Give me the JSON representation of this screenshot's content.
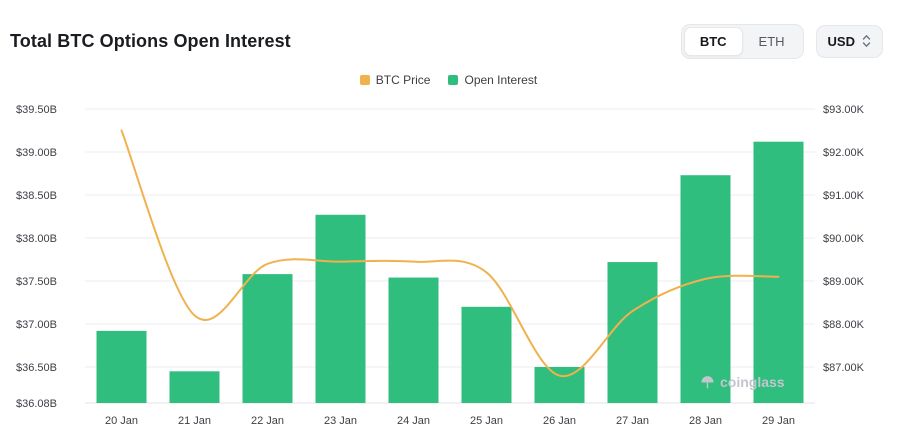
{
  "header": {
    "title": "Total BTC Options Open Interest",
    "toggle": {
      "btc": "BTC",
      "eth": "ETH"
    },
    "currency": "USD"
  },
  "legend": {
    "btc_price": "BTC Price",
    "open_interest": "Open Interest"
  },
  "watermark": {
    "text": "coinglass"
  },
  "colors": {
    "bar": "#2FBE7D",
    "line": "#F0B14F",
    "grid": "#ededee",
    "axis_line": "#e2e3e6",
    "axis_text": "#3c3f45",
    "watermark": "#c2c6cc"
  },
  "chart_data": {
    "type": "bar",
    "title": "Total BTC Options Open Interest",
    "legend_position": "top-center",
    "grid": "horizontal",
    "categories": [
      "20 Jan",
      "21 Jan",
      "22 Jan",
      "23 Jan",
      "24 Jan",
      "25 Jan",
      "26 Jan",
      "27 Jan",
      "28 Jan",
      "29 Jan"
    ],
    "series": [
      {
        "name": "Open Interest",
        "type": "bar",
        "axis": "left",
        "unit": "USD billions",
        "values": [
          36.92,
          36.45,
          37.58,
          38.27,
          37.54,
          37.2,
          36.5,
          37.72,
          38.73,
          39.12
        ]
      },
      {
        "name": "BTC Price",
        "type": "line",
        "axis": "right",
        "unit": "USD thousands",
        "values": [
          92.5,
          88.2,
          89.4,
          89.45,
          89.45,
          89.2,
          86.8,
          88.3,
          89.05,
          89.1
        ]
      }
    ],
    "left_axis": {
      "ticks": [
        "$39.50B",
        "$39.00B",
        "$38.50B",
        "$38.00B",
        "$37.50B",
        "$37.00B",
        "$36.50B",
        "$36.08B"
      ],
      "tick_values": [
        39.5,
        39.0,
        38.5,
        38.0,
        37.5,
        37.0,
        36.5,
        36.08
      ],
      "min": 36.08,
      "top": 39.5
    },
    "right_axis": {
      "ticks": [
        "$93.00K",
        "$92.00K",
        "$91.00K",
        "$90.00K",
        "$89.00K",
        "$88.00K",
        "$87.00K"
      ],
      "tick_values": [
        93,
        92,
        91,
        90,
        89,
        88,
        87
      ]
    }
  }
}
